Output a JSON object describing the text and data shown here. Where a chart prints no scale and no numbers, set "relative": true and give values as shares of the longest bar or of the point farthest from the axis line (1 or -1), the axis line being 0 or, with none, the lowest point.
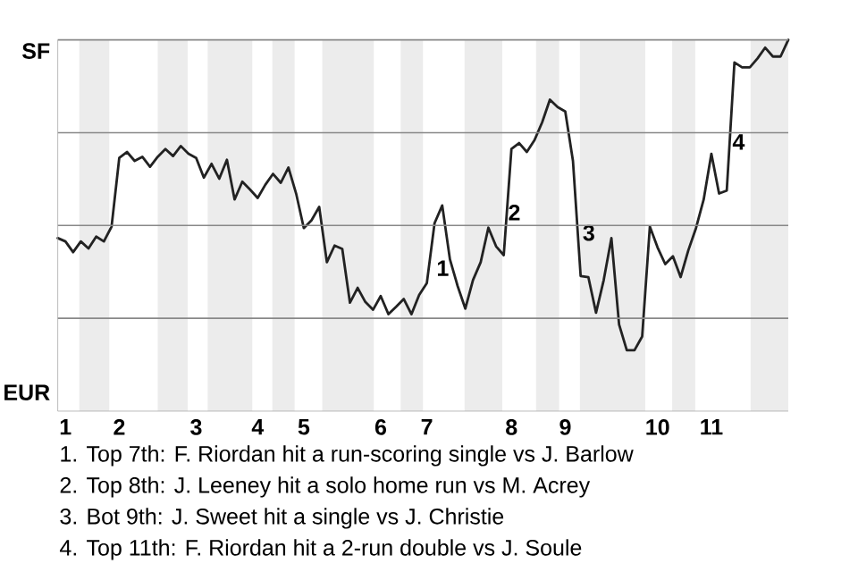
{
  "chart_data": {
    "type": "line",
    "relative": true,
    "categories": [
      null,
      "1",
      null,
      null,
      null,
      null,
      null,
      null,
      "2",
      null,
      null,
      null,
      null,
      null,
      null,
      null,
      null,
      null,
      "3",
      null,
      null,
      null,
      null,
      null,
      null,
      null,
      "4",
      null,
      null,
      null,
      null,
      null,
      "5",
      null,
      null,
      null,
      null,
      null,
      null,
      null,
      null,
      null,
      "6",
      null,
      null,
      null,
      null,
      null,
      "7",
      null,
      null,
      null,
      null,
      null,
      null,
      null,
      null,
      null,
      null,
      "8",
      null,
      null,
      null,
      null,
      null,
      null,
      "9",
      null,
      null,
      null,
      null,
      null,
      null,
      null,
      null,
      null,
      null,
      null,
      "10",
      null,
      null,
      null,
      null,
      null,
      null,
      "11",
      null,
      null,
      null,
      null,
      null,
      null,
      null,
      null,
      null,
      null
    ],
    "grid": "y",
    "series": [
      {
        "color": "#222222",
        "values": [
          0.466,
          0.457,
          0.428,
          0.457,
          0.438,
          0.47,
          0.457,
          0.497,
          0.682,
          0.698,
          0.674,
          0.685,
          0.658,
          0.685,
          0.706,
          0.687,
          0.714,
          0.693,
          0.682,
          0.629,
          0.666,
          0.626,
          0.677,
          0.57,
          0.618,
          0.597,
          0.574,
          0.61,
          0.639,
          0.615,
          0.656,
          0.586,
          0.493,
          0.514,
          0.55,
          0.401,
          0.446,
          0.437,
          0.292,
          0.332,
          0.294,
          0.273,
          0.31,
          0.261,
          0.281,
          0.302,
          0.261,
          0.313,
          0.345,
          0.506,
          0.554,
          0.409,
          0.337,
          0.276,
          0.353,
          0.401,
          0.494,
          0.444,
          0.42,
          0.706,
          0.722,
          0.698,
          0.73,
          0.778,
          0.839,
          0.819,
          0.807,
          0.674,
          0.364,
          0.361,
          0.265,
          0.353,
          0.466,
          0.233,
          0.164,
          0.164,
          0.201,
          0.497,
          0.441,
          0.396,
          0.417,
          0.361,
          0.433,
          0.493,
          0.57,
          0.693,
          0.586,
          0.594,
          0.939,
          0.926,
          0.926,
          0.95,
          0.979,
          0.955,
          0.955,
          1.0
        ]
      }
    ],
    "annotations": [
      "SF",
      "EUR",
      "1",
      "2",
      "3",
      "4",
      "1. Top 7th: F. Riordan hit a run-scoring single vs J. Barlow",
      "2. Top 8th: J. Leeney hit a solo home run vs M. Acrey",
      "3. Bot 9th: J. Sweet hit a single vs J. Christie",
      "4. Top 11th: F. Riordan hit a 2-run double vs J. Soule"
    ]
  }
}
